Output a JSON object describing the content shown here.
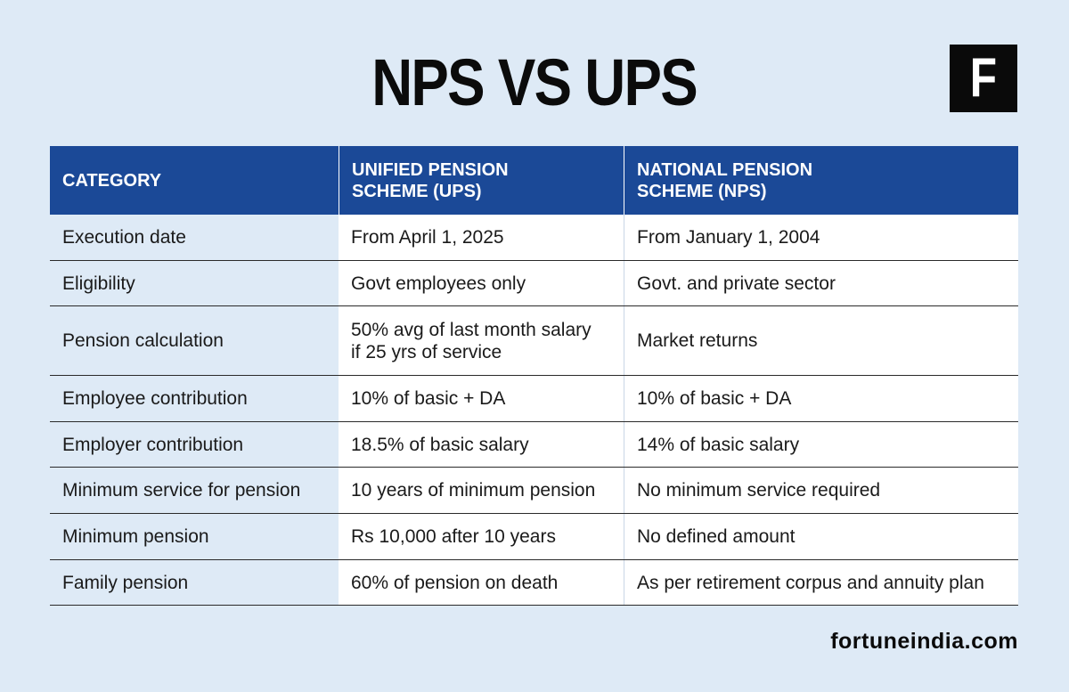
{
  "title": "NPS VS UPS",
  "logo": "F",
  "table": {
    "headers": [
      "CATEGORY",
      "UNIFIED PENSION SCHEME (UPS)",
      "NATIONAL PENSION SCHEME (NPS)"
    ],
    "rows": [
      [
        "Execution date",
        "From April 1, 2025",
        "From January 1, 2004"
      ],
      [
        "Eligibility",
        "Govt employees only",
        "Govt. and private sector"
      ],
      [
        "Pension calculation",
        "50% avg of last month salary if 25 yrs of service",
        "Market returns"
      ],
      [
        "Employee contribution",
        "10% of basic + DA",
        "10% of basic + DA"
      ],
      [
        "Employer contribution",
        "18.5% of basic salary",
        "14% of basic salary"
      ],
      [
        "Minimum service for pension",
        "10 years of minimum pension",
        "No minimum service required"
      ],
      [
        "Minimum pension",
        "Rs 10,000 after 10 years",
        "No defined amount"
      ],
      [
        "Family pension",
        "60% of pension on death",
        "As per retirement corpus and annuity plan"
      ]
    ]
  },
  "footer": "fortuneindia.com",
  "colors": {
    "background": "#deeaf6",
    "header": "#1b4997",
    "logo": "#0a0a0a"
  }
}
